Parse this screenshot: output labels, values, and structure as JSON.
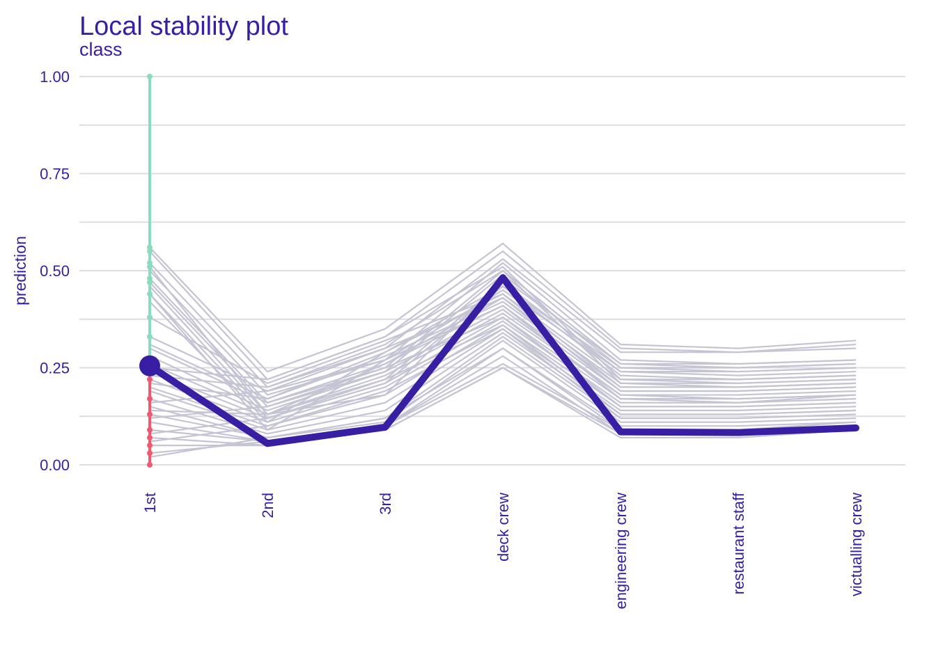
{
  "chart_data": {
    "type": "line",
    "title": "Local stability plot",
    "subtitle": "class",
    "ylabel": "prediction",
    "xlabel": "",
    "categories": [
      "1st",
      "2nd",
      "3rd",
      "deck crew",
      "engineering crew",
      "restaurant staff",
      "victualling crew"
    ],
    "ylim": [
      0,
      1
    ],
    "y_ticks": [
      "0.00",
      "0.25",
      "0.50",
      "0.75",
      "1.00"
    ],
    "y_tick_values": [
      0,
      0.25,
      0.5,
      0.75,
      1.0
    ],
    "grid": true,
    "legend": "none",
    "colors": {
      "observation": "#371ea3",
      "neighbors": "#c4c4d4",
      "residual_positive": "#8bdcbe",
      "residual_negative": "#f05a71",
      "text": "#371ea3",
      "grid": "#dddde2"
    },
    "observation": {
      "values": [
        0.255,
        0.055,
        0.097,
        0.482,
        0.085,
        0.083,
        0.095
      ]
    },
    "neighbors": [
      {
        "values": [
          0.56,
          0.24,
          0.35,
          0.57,
          0.31,
          0.3,
          0.32
        ]
      },
      {
        "values": [
          0.55,
          0.22,
          0.33,
          0.55,
          0.3,
          0.29,
          0.31
        ]
      },
      {
        "values": [
          0.52,
          0.2,
          0.3,
          0.53,
          0.29,
          0.29,
          0.3
        ]
      },
      {
        "values": [
          0.5,
          0.18,
          0.27,
          0.52,
          0.27,
          0.26,
          0.27
        ]
      },
      {
        "values": [
          0.48,
          0.16,
          0.25,
          0.5,
          0.26,
          0.25,
          0.26
        ]
      },
      {
        "values": [
          0.47,
          0.15,
          0.24,
          0.49,
          0.25,
          0.24,
          0.25
        ]
      },
      {
        "values": [
          0.46,
          0.13,
          0.22,
          0.47,
          0.24,
          0.23,
          0.24
        ]
      },
      {
        "values": [
          0.44,
          0.12,
          0.21,
          0.46,
          0.23,
          0.22,
          0.23
        ]
      },
      {
        "values": [
          0.38,
          0.21,
          0.32,
          0.44,
          0.22,
          0.21,
          0.22
        ]
      },
      {
        "values": [
          0.33,
          0.19,
          0.3,
          0.43,
          0.21,
          0.2,
          0.21
        ]
      },
      {
        "values": [
          0.31,
          0.17,
          0.28,
          0.42,
          0.2,
          0.2,
          0.21
        ]
      },
      {
        "values": [
          0.3,
          0.16,
          0.26,
          0.41,
          0.19,
          0.19,
          0.2
        ]
      },
      {
        "values": [
          0.28,
          0.14,
          0.24,
          0.4,
          0.18,
          0.18,
          0.19
        ]
      },
      {
        "values": [
          0.26,
          0.13,
          0.23,
          0.39,
          0.18,
          0.17,
          0.18
        ]
      },
      {
        "values": [
          0.24,
          0.12,
          0.21,
          0.38,
          0.17,
          0.16,
          0.18
        ]
      },
      {
        "values": [
          0.22,
          0.11,
          0.2,
          0.37,
          0.16,
          0.16,
          0.17
        ]
      },
      {
        "values": [
          0.2,
          0.1,
          0.18,
          0.36,
          0.15,
          0.15,
          0.16
        ]
      },
      {
        "values": [
          0.19,
          0.09,
          0.16,
          0.35,
          0.14,
          0.14,
          0.15
        ]
      },
      {
        "values": [
          0.17,
          0.08,
          0.14,
          0.34,
          0.13,
          0.13,
          0.14
        ]
      },
      {
        "values": [
          0.15,
          0.07,
          0.12,
          0.33,
          0.12,
          0.12,
          0.13
        ]
      },
      {
        "values": [
          0.13,
          0.07,
          0.11,
          0.32,
          0.11,
          0.11,
          0.12
        ]
      },
      {
        "values": [
          0.11,
          0.06,
          0.1,
          0.3,
          0.1,
          0.1,
          0.11
        ]
      },
      {
        "values": [
          0.09,
          0.06,
          0.1,
          0.26,
          0.09,
          0.09,
          0.1
        ]
      },
      {
        "values": [
          0.07,
          0.05,
          0.09,
          0.25,
          0.08,
          0.08,
          0.09
        ]
      },
      {
        "values": [
          0.05,
          0.05,
          0.09,
          0.25,
          0.07,
          0.07,
          0.09
        ]
      },
      {
        "values": [
          0.03,
          0.06,
          0.1,
          0.28,
          0.08,
          0.08,
          0.1
        ]
      },
      {
        "values": [
          0.02,
          0.07,
          0.12,
          0.3,
          0.09,
          0.09,
          0.11
        ]
      },
      {
        "values": [
          0.44,
          0.09,
          0.27,
          0.45,
          0.24,
          0.24,
          0.25
        ]
      },
      {
        "values": [
          0.42,
          0.11,
          0.29,
          0.46,
          0.25,
          0.25,
          0.26
        ]
      },
      {
        "values": [
          0.51,
          0.13,
          0.18,
          0.48,
          0.26,
          0.26,
          0.27
        ]
      },
      {
        "values": [
          0.23,
          0.2,
          0.31,
          0.5,
          0.21,
          0.21,
          0.22
        ]
      },
      {
        "values": [
          0.25,
          0.22,
          0.33,
          0.51,
          0.22,
          0.22,
          0.23
        ]
      },
      {
        "values": [
          0.16,
          0.19,
          0.27,
          0.41,
          0.17,
          0.17,
          0.18
        ]
      },
      {
        "values": [
          0.12,
          0.15,
          0.25,
          0.38,
          0.15,
          0.15,
          0.16
        ]
      },
      {
        "values": [
          0.08,
          0.12,
          0.22,
          0.36,
          0.13,
          0.13,
          0.14
        ]
      },
      {
        "values": [
          0.06,
          0.1,
          0.19,
          0.35,
          0.12,
          0.12,
          0.13
        ]
      },
      {
        "values": [
          0.14,
          0.13,
          0.26,
          0.43,
          0.19,
          0.19,
          0.2
        ]
      },
      {
        "values": [
          0.21,
          0.17,
          0.29,
          0.44,
          0.2,
          0.2,
          0.21
        ]
      }
    ],
    "residuals": [
      {
        "value": 1.0,
        "sign": "positive"
      },
      {
        "value": 0.56,
        "sign": "positive"
      },
      {
        "value": 0.55,
        "sign": "positive"
      },
      {
        "value": 0.52,
        "sign": "positive"
      },
      {
        "value": 0.51,
        "sign": "positive"
      },
      {
        "value": 0.48,
        "sign": "positive"
      },
      {
        "value": 0.47,
        "sign": "positive"
      },
      {
        "value": 0.44,
        "sign": "positive"
      },
      {
        "value": 0.38,
        "sign": "positive"
      },
      {
        "value": 0.33,
        "sign": "positive"
      },
      {
        "value": 0.22,
        "sign": "negative"
      },
      {
        "value": 0.17,
        "sign": "negative"
      },
      {
        "value": 0.13,
        "sign": "negative"
      },
      {
        "value": 0.09,
        "sign": "negative"
      },
      {
        "value": 0.07,
        "sign": "negative"
      },
      {
        "value": 0.05,
        "sign": "negative"
      },
      {
        "value": 0.03,
        "sign": "negative"
      },
      {
        "value": 0.0,
        "sign": "negative"
      }
    ]
  }
}
